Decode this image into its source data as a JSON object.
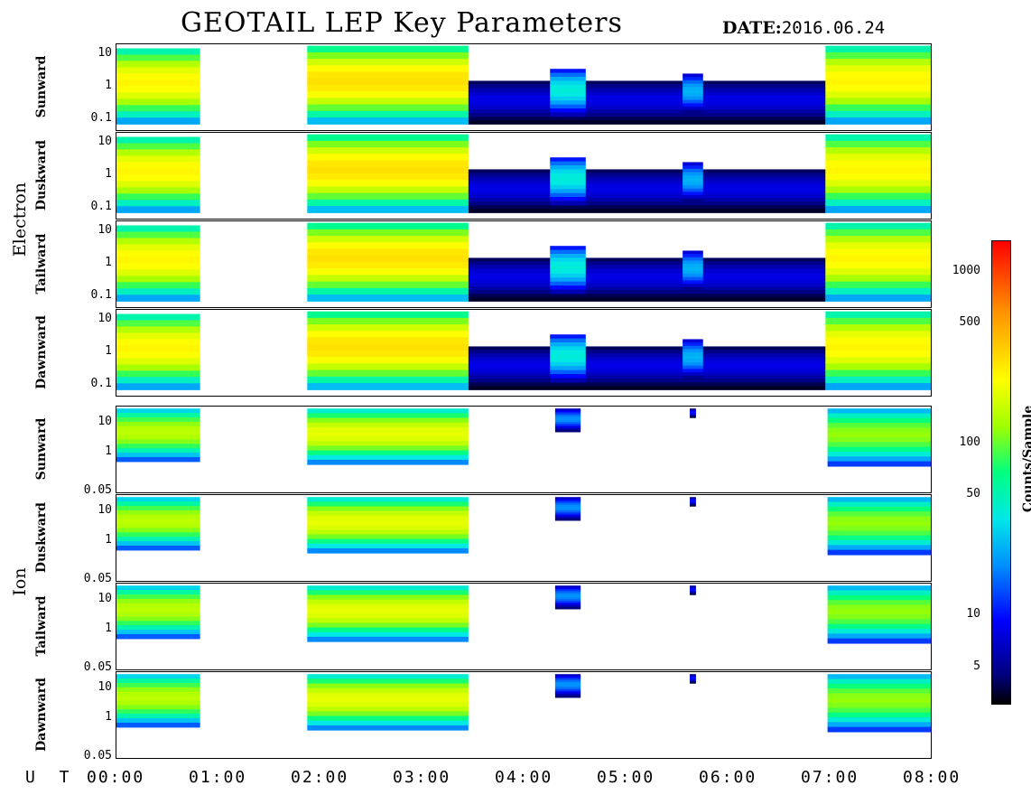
{
  "header": {
    "title": "GEOTAIL LEP Key Parameters",
    "date_label": "DATE:",
    "date_value": "2016.06.24"
  },
  "groups": [
    {
      "name": "Electron",
      "panels": [
        "Sunward",
        "Duskward",
        "Tailward",
        "Dawnward"
      ],
      "yticks": [
        "10",
        "1",
        "0.1"
      ]
    },
    {
      "name": "Ion",
      "panels": [
        "Sunward",
        "Duskward",
        "Tailward",
        "Dawnward"
      ],
      "yticks": [
        "10",
        "1",
        "0.05"
      ]
    }
  ],
  "xaxis": {
    "label": "U T",
    "ticks": [
      "00:00",
      "01:00",
      "02:00",
      "03:00",
      "04:00",
      "05:00",
      "06:00",
      "07:00",
      "08:00"
    ]
  },
  "colorbar": {
    "label": "Counts/Sample",
    "ticks": [
      "1000",
      "500",
      "100",
      "50",
      "10",
      "5"
    ]
  },
  "chart_data": {
    "type": "heatmap",
    "title": "GEOTAIL LEP Key Parameters",
    "date": "2016.06.24",
    "xlabel": "U T",
    "x_range_hours": [
      0,
      8
    ],
    "x_ticks": [
      "00:00",
      "01:00",
      "02:00",
      "03:00",
      "04:00",
      "05:00",
      "06:00",
      "07:00",
      "08:00"
    ],
    "data_gaps_hours": [
      [
        0.82,
        1.87
      ]
    ],
    "colorbar": {
      "label": "Counts/Sample",
      "range": [
        3,
        1500
      ],
      "scale": "log",
      "ticks": [
        1000,
        500,
        100,
        50,
        10,
        5
      ]
    },
    "electron": {
      "panels": [
        "Sunward",
        "Duskward",
        "Tailward",
        "Dawnward"
      ],
      "y_scale": "log",
      "y_ticks": [
        10,
        1,
        0.1
      ],
      "segments": [
        {
          "start": 0.0,
          "end": 0.82,
          "top": 15,
          "bottom": 0.07,
          "peak": 250
        },
        {
          "start": 1.87,
          "end": 3.45,
          "top": 18,
          "bottom": 0.07,
          "peak": 300
        },
        {
          "start": 3.45,
          "end": 6.95,
          "top": 1.5,
          "bottom": 0.07,
          "peak": 8
        },
        {
          "start": 4.25,
          "end": 4.6,
          "top": 3.5,
          "bottom": 0.12,
          "peak": 40
        },
        {
          "start": 5.55,
          "end": 5.75,
          "top": 2.5,
          "bottom": 0.15,
          "peak": 25
        },
        {
          "start": 6.95,
          "end": 8.0,
          "top": 18,
          "bottom": 0.07,
          "peak": 250
        }
      ]
    },
    "ion": {
      "panels": [
        "Sunward",
        "Duskward",
        "Tailward",
        "Dawnward"
      ],
      "y_scale": "log",
      "y_ticks": [
        10,
        1,
        0.05
      ],
      "segments": [
        {
          "start": 0.0,
          "end": 0.82,
          "top": 30,
          "bottom": 0.5,
          "peak": 150
        },
        {
          "start": 1.87,
          "end": 3.45,
          "top": 30,
          "bottom": 0.4,
          "peak": 200
        },
        {
          "start": 4.3,
          "end": 4.55,
          "top": 30,
          "bottom": 5,
          "peak": 20
        },
        {
          "start": 5.62,
          "end": 5.68,
          "top": 30,
          "bottom": 15,
          "peak": 10
        },
        {
          "start": 6.97,
          "end": 8.0,
          "top": 30,
          "bottom": 0.35,
          "peak": 120
        }
      ]
    }
  }
}
